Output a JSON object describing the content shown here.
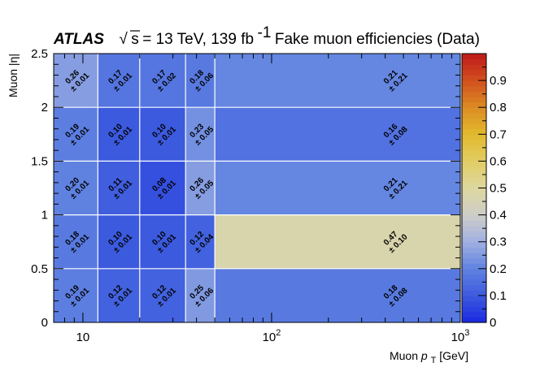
{
  "chart_data": {
    "type": "heatmap",
    "experiment": "ATLAS",
    "sqrt_symbol": "√",
    "energy_var": "s",
    "title_energy": " = 13 TeV, 139 fb",
    "lumi_sup": "-1",
    "title_text": " Fake muon efficiencies (Data)",
    "xlabel_prefix": "Muon ",
    "xlabel_var": "p",
    "xlabel_sub": "T",
    "xlabel_unit": " [GeV]",
    "ylabel": "Muon |η|",
    "x_scale": "log",
    "xlim": [
      7,
      1000
    ],
    "ylim": [
      0,
      2.5
    ],
    "zlim": [
      0,
      1
    ],
    "x_edges": [
      7,
      12,
      20,
      35,
      50,
      1000
    ],
    "y_edges": [
      0,
      0.5,
      1,
      1.5,
      2,
      2.5
    ],
    "x_ticks": [
      {
        "value": 10,
        "base": "10",
        "exp": ""
      },
      {
        "value": 100,
        "base": "10",
        "exp": "2"
      },
      {
        "value": 1000,
        "base": "10",
        "exp": "3"
      }
    ],
    "y_ticks": [
      {
        "value": 0,
        "label": "0"
      },
      {
        "value": 0.5,
        "label": "0.5"
      },
      {
        "value": 1,
        "label": "1"
      },
      {
        "value": 1.5,
        "label": "1.5"
      },
      {
        "value": 2,
        "label": "2"
      },
      {
        "value": 2.5,
        "label": "2.5"
      }
    ],
    "colorbar_ticks": [
      {
        "value": 0,
        "label": "0"
      },
      {
        "value": 0.1,
        "label": "0.1"
      },
      {
        "value": 0.2,
        "label": "0.2"
      },
      {
        "value": 0.3,
        "label": "0.3"
      },
      {
        "value": 0.4,
        "label": "0.4"
      },
      {
        "value": 0.5,
        "label": "0.5"
      },
      {
        "value": 0.6,
        "label": "0.6"
      },
      {
        "value": 0.7,
        "label": "0.7"
      },
      {
        "value": 0.8,
        "label": "0.8"
      },
      {
        "value": 0.9,
        "label": "0.9"
      }
    ],
    "pm_symbol": "±",
    "values": [
      [
        "0.19",
        "0.12",
        "0.12",
        "0.25",
        "0.18"
      ],
      [
        "0.18",
        "0.10",
        "0.10",
        "0.12",
        "0.47"
      ],
      [
        "0.20",
        "0.11",
        "0.08",
        "0.26",
        "0.21"
      ],
      [
        "0.19",
        "0.10",
        "0.10",
        "0.23",
        "0.16"
      ],
      [
        "0.26",
        "0.17",
        "0.17",
        "0.18",
        "0.21"
      ]
    ],
    "errors": [
      [
        "0.01",
        "0.01",
        "0.01",
        "0.06",
        "0.08"
      ],
      [
        "0.01",
        "0.01",
        "0.01",
        "0.04",
        "0.10"
      ],
      [
        "0.01",
        "0.01",
        "0.01",
        "0.05",
        "0.21"
      ],
      [
        "0.01",
        "0.01",
        "0.01",
        "0.05",
        "0.08"
      ],
      [
        "0.01",
        "0.01",
        "0.02",
        "0.06",
        "0.21"
      ]
    ]
  }
}
